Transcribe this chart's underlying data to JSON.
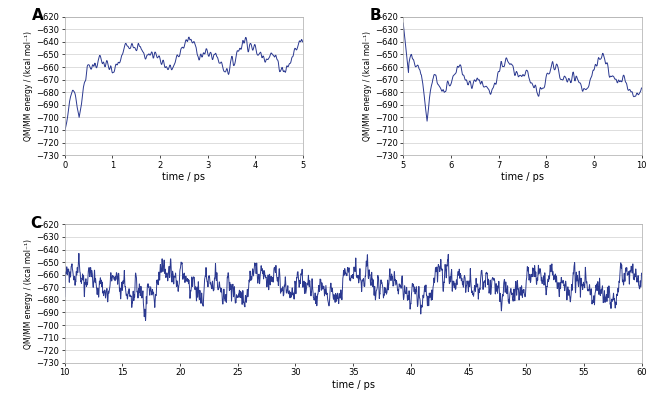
{
  "line_color": "#2b3990",
  "line_width": 0.7,
  "bg_color": "#ffffff",
  "grid_color": "#d0d0d0",
  "ylabel": "QM/MM energy / (kcal mol⁻¹)",
  "xlabel": "time / ps",
  "panels": [
    {
      "label": "A",
      "xlim": [
        0,
        5
      ],
      "ylim": [
        -730,
        -620
      ],
      "xticks": [
        0,
        1,
        2,
        3,
        4,
        5
      ],
      "yticks": [
        -730,
        -720,
        -710,
        -700,
        -690,
        -680,
        -670,
        -660,
        -650,
        -640,
        -630,
        -620
      ]
    },
    {
      "label": "B",
      "xlim": [
        5,
        10
      ],
      "ylim": [
        -730,
        -620
      ],
      "xticks": [
        5,
        6,
        7,
        8,
        9,
        10
      ],
      "yticks": [
        -730,
        -720,
        -710,
        -700,
        -690,
        -680,
        -670,
        -660,
        -650,
        -640,
        -630,
        -620
      ]
    },
    {
      "label": "C",
      "xlim": [
        10,
        60
      ],
      "ylim": [
        -730,
        -620
      ],
      "xticks": [
        10,
        15,
        20,
        25,
        30,
        35,
        40,
        45,
        50,
        55,
        60
      ],
      "yticks": [
        -730,
        -720,
        -710,
        -700,
        -690,
        -680,
        -670,
        -660,
        -650,
        -640,
        -630,
        -620
      ]
    }
  ]
}
